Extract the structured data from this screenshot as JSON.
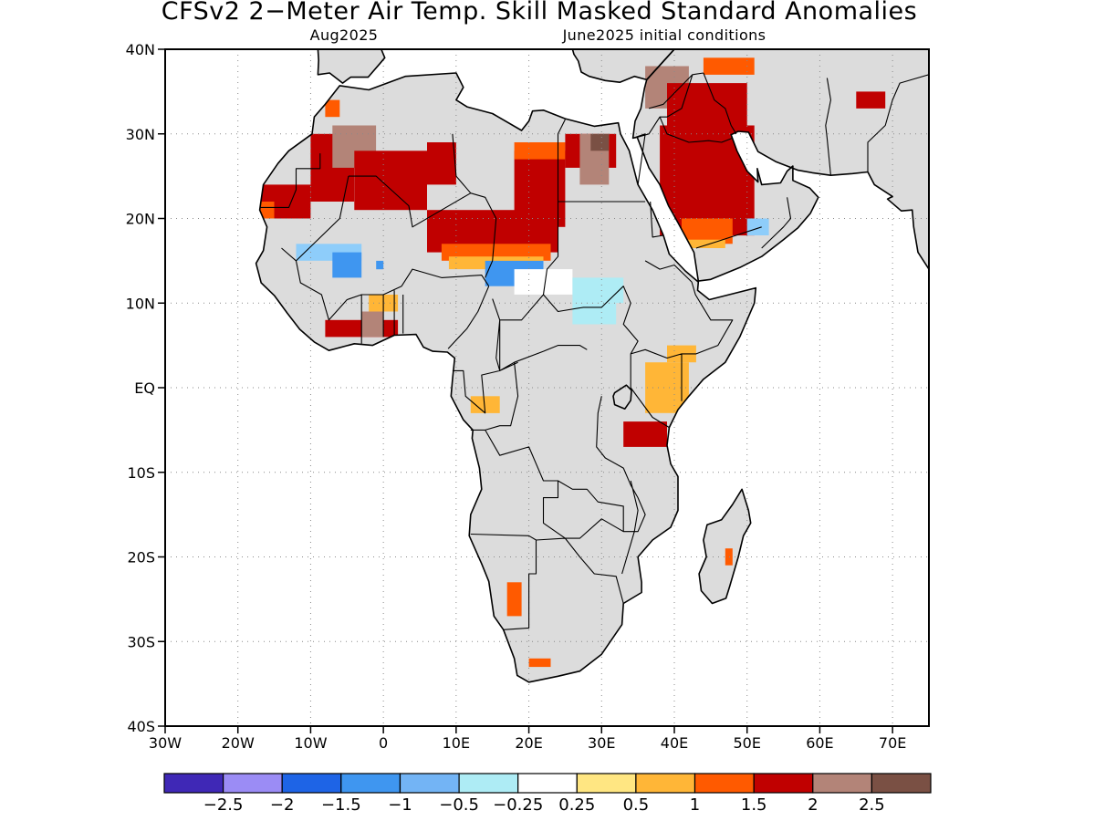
{
  "title": "CFSv2 2−Meter Air Temp. Skill Masked Standard Anomalies",
  "subtitle_left": "Aug2025",
  "subtitle_right": "June2025 initial conditions",
  "map": {
    "lon_range": [
      -30,
      75
    ],
    "lat_range": [
      -40,
      40
    ],
    "land_color": "#dcdcdc",
    "grid": "dotted",
    "lon_ticks": [
      {
        "v": -30,
        "label": "30W"
      },
      {
        "v": -20,
        "label": "20W"
      },
      {
        "v": -10,
        "label": "10W"
      },
      {
        "v": 0,
        "label": "0"
      },
      {
        "v": 10,
        "label": "10E"
      },
      {
        "v": 20,
        "label": "20E"
      },
      {
        "v": 30,
        "label": "30E"
      },
      {
        "v": 40,
        "label": "40E"
      },
      {
        "v": 50,
        "label": "50E"
      },
      {
        "v": 60,
        "label": "60E"
      },
      {
        "v": 70,
        "label": "70E"
      }
    ],
    "lat_ticks": [
      {
        "v": 40,
        "label": "40N"
      },
      {
        "v": 30,
        "label": "30N"
      },
      {
        "v": 20,
        "label": "20N"
      },
      {
        "v": 10,
        "label": "10N"
      },
      {
        "v": 0,
        "label": "EQ"
      },
      {
        "v": -10,
        "label": "10S"
      },
      {
        "v": -20,
        "label": "20S"
      },
      {
        "v": -30,
        "label": "30S"
      },
      {
        "v": -40,
        "label": "40S"
      }
    ]
  },
  "anomalies": [
    {
      "lon": [
        -17,
        -10
      ],
      "lat": [
        20,
        24
      ],
      "color": "#c00000"
    },
    {
      "lon": [
        -10,
        -4
      ],
      "lat": [
        22,
        30
      ],
      "color": "#c00000"
    },
    {
      "lon": [
        -7,
        -1
      ],
      "lat": [
        26,
        31
      ],
      "color": "#b38478"
    },
    {
      "lon": [
        -4,
        6
      ],
      "lat": [
        21,
        28
      ],
      "color": "#c00000"
    },
    {
      "lon": [
        6,
        10
      ],
      "lat": [
        24,
        29
      ],
      "color": "#c00000"
    },
    {
      "lon": [
        -17,
        -15
      ],
      "lat": [
        20,
        22
      ],
      "color": "#ff5a00"
    },
    {
      "lon": [
        -8,
        -6
      ],
      "lat": [
        32,
        34
      ],
      "color": "#ff5a00"
    },
    {
      "lon": [
        6,
        24
      ],
      "lat": [
        16,
        21
      ],
      "color": "#c00000"
    },
    {
      "lon": [
        8,
        23
      ],
      "lat": [
        15,
        17
      ],
      "color": "#ff5a00"
    },
    {
      "lon": [
        9,
        22
      ],
      "lat": [
        14,
        15.5
      ],
      "color": "#ffb637"
    },
    {
      "lon": [
        18,
        25
      ],
      "lat": [
        19,
        28
      ],
      "color": "#c00000"
    },
    {
      "lon": [
        18,
        25
      ],
      "lat": [
        27,
        29
      ],
      "color": "#ff5a00"
    },
    {
      "lon": [
        25,
        32
      ],
      "lat": [
        26,
        30
      ],
      "color": "#c00000"
    },
    {
      "lon": [
        27,
        31
      ],
      "lat": [
        24,
        30
      ],
      "color": "#b38478"
    },
    {
      "lon": [
        28.5,
        31
      ],
      "lat": [
        28,
        30
      ],
      "color": "#7a5044"
    },
    {
      "lon": [
        38,
        51
      ],
      "lat": [
        18,
        31
      ],
      "color": "#c00000"
    },
    {
      "lon": [
        36,
        42
      ],
      "lat": [
        33,
        38
      ],
      "color": "#b38478"
    },
    {
      "lon": [
        39,
        50
      ],
      "lat": [
        30,
        36
      ],
      "color": "#c00000"
    },
    {
      "lon": [
        44,
        51
      ],
      "lat": [
        37,
        39
      ],
      "color": "#ff5a00"
    },
    {
      "lon": [
        41,
        48
      ],
      "lat": [
        17,
        20
      ],
      "color": "#ff5a00"
    },
    {
      "lon": [
        41,
        47
      ],
      "lat": [
        16.5,
        17.5
      ],
      "color": "#ffb637"
    },
    {
      "lon": [
        65,
        69
      ],
      "lat": [
        33,
        35
      ],
      "color": "#c00000"
    },
    {
      "lon": [
        -8,
        2
      ],
      "lat": [
        6,
        8
      ],
      "color": "#c00000"
    },
    {
      "lon": [
        -3,
        0
      ],
      "lat": [
        6,
        9
      ],
      "color": "#b38478"
    },
    {
      "lon": [
        -2,
        2
      ],
      "lat": [
        9,
        11
      ],
      "color": "#ffb637"
    },
    {
      "lon": [
        33,
        39
      ],
      "lat": [
        -7,
        -4
      ],
      "color": "#c00000"
    },
    {
      "lon": [
        36,
        42
      ],
      "lat": [
        -3,
        3
      ],
      "color": "#ffb637"
    },
    {
      "lon": [
        39,
        43
      ],
      "lat": [
        3,
        5
      ],
      "color": "#ffb637"
    },
    {
      "lon": [
        12,
        16
      ],
      "lat": [
        -3,
        -1
      ],
      "color": "#ffb637"
    },
    {
      "lon": [
        17,
        19
      ],
      "lat": [
        -27,
        -23
      ],
      "color": "#ff5a00"
    },
    {
      "lon": [
        20,
        23
      ],
      "lat": [
        -33,
        -32
      ],
      "color": "#ff5a00"
    },
    {
      "lon": [
        47,
        48
      ],
      "lat": [
        -21,
        -19
      ],
      "color": "#ff5a00"
    },
    {
      "lon": [
        -12,
        -3
      ],
      "lat": [
        15,
        17
      ],
      "color": "#8ecdfa"
    },
    {
      "lon": [
        -7,
        -3
      ],
      "lat": [
        13,
        16
      ],
      "color": "#3f96f0"
    },
    {
      "lon": [
        -1,
        0
      ],
      "lat": [
        14,
        15
      ],
      "color": "#3f96f0"
    },
    {
      "lon": [
        14,
        22
      ],
      "lat": [
        12,
        15
      ],
      "color": "#3f96f0"
    },
    {
      "lon": [
        18,
        26
      ],
      "lat": [
        11,
        14
      ],
      "color": "#ffffff"
    },
    {
      "lon": [
        26,
        33
      ],
      "lat": [
        10,
        13
      ],
      "color": "#aeecf5"
    },
    {
      "lon": [
        26,
        32
      ],
      "lat": [
        7.5,
        10
      ],
      "color": "#aeecf5"
    },
    {
      "lon": [
        50,
        53
      ],
      "lat": [
        18,
        20
      ],
      "color": "#8ecdfa"
    }
  ],
  "colorbar": {
    "colors": [
      "#3f28b6",
      "#9b8cf5",
      "#1e64e6",
      "#3f96f0",
      "#73b4f5",
      "#aeecf5",
      "#ffffff",
      "#ffe682",
      "#ffb637",
      "#ff5a00",
      "#c00000",
      "#b38478",
      "#7a5044"
    ],
    "labels": [
      "−2.5",
      "−2",
      "−1.5",
      "−1",
      "−0.5",
      "−0.25",
      "0.25",
      "0.5",
      "1",
      "1.5",
      "2",
      "2.5"
    ]
  }
}
